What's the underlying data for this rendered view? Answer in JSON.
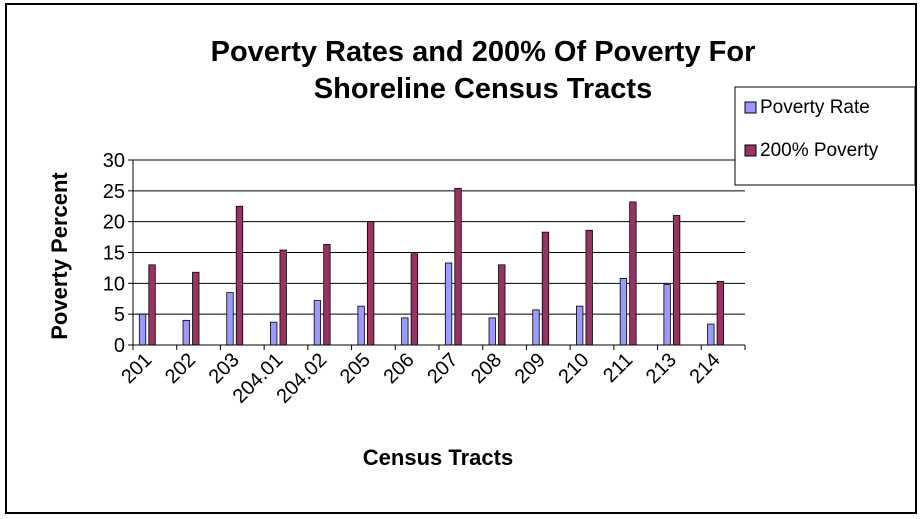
{
  "chart_data": {
    "type": "bar",
    "title_line1": "Poverty Rates and 200% Of Poverty For",
    "title_line2": "Shoreline Census Tracts",
    "xlabel": "Census Tracts",
    "ylabel": "Poverty Percent",
    "ylim": [
      0,
      30
    ],
    "yticks": [
      0,
      5,
      10,
      15,
      20,
      25,
      30
    ],
    "grid": true,
    "legend_position": "right",
    "categories": [
      "201",
      "202",
      "203",
      "204.01",
      "204.02",
      "205",
      "206",
      "207",
      "208",
      "209",
      "210",
      "211",
      "213",
      "214"
    ],
    "series": [
      {
        "name": "Poverty Rate",
        "color": "#9999FF",
        "values": [
          5.0,
          4.0,
          8.5,
          3.7,
          7.2,
          6.3,
          4.4,
          13.3,
          4.4,
          5.7,
          6.3,
          10.8,
          9.8,
          3.4
        ]
      },
      {
        "name": "200% Poverty",
        "color": "#993366",
        "values": [
          13.0,
          11.8,
          22.5,
          15.4,
          16.3,
          20.0,
          14.8,
          25.4,
          13.0,
          18.3,
          18.6,
          23.2,
          21.0,
          10.3
        ]
      }
    ]
  }
}
